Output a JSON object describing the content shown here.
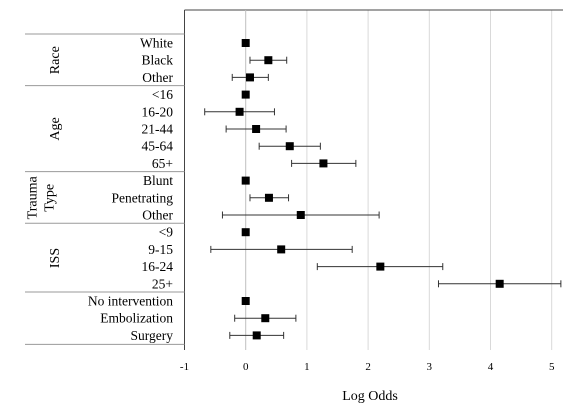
{
  "chart_data": {
    "type": "scatter",
    "xlabel": "Log Odds",
    "xlim": [
      -1,
      5.2
    ],
    "xticks": [
      "-1",
      "0",
      "1",
      "2",
      "3",
      "4",
      "5"
    ],
    "grid": true,
    "groups": [
      {
        "name": "Race",
        "rows": [
          {
            "label": "White",
            "est": 0,
            "lo": null,
            "hi": null
          },
          {
            "label": "Black",
            "est": 0.37,
            "lo": 0.07,
            "hi": 0.67
          },
          {
            "label": "Other",
            "est": 0.07,
            "lo": -0.22,
            "hi": 0.37
          }
        ]
      },
      {
        "name": "Age",
        "rows": [
          {
            "label": "<16",
            "est": 0,
            "lo": null,
            "hi": null
          },
          {
            "label": "16-20",
            "est": -0.1,
            "lo": -0.67,
            "hi": 0.47
          },
          {
            "label": "21-44",
            "est": 0.17,
            "lo": -0.32,
            "hi": 0.66
          },
          {
            "label": "45-64",
            "est": 0.72,
            "lo": 0.22,
            "hi": 1.22
          },
          {
            "label": "65+",
            "est": 1.27,
            "lo": 0.75,
            "hi": 1.8
          }
        ]
      },
      {
        "name": "Trauma Type",
        "rows": [
          {
            "label": "Blunt",
            "est": 0,
            "lo": null,
            "hi": null
          },
          {
            "label": "Penetrating",
            "est": 0.38,
            "lo": 0.07,
            "hi": 0.7
          },
          {
            "label": "Other",
            "est": 0.9,
            "lo": -0.38,
            "hi": 2.18
          }
        ]
      },
      {
        "name": "ISS",
        "rows": [
          {
            "label": "<9",
            "est": 0,
            "lo": null,
            "hi": null
          },
          {
            "label": "9-15",
            "est": 0.58,
            "lo": -0.57,
            "hi": 1.74
          },
          {
            "label": "16-24",
            "est": 2.2,
            "lo": 1.17,
            "hi": 3.22
          },
          {
            "label": "25+",
            "est": 4.15,
            "lo": 3.15,
            "hi": 5.15
          }
        ]
      },
      {
        "name": "",
        "rows": [
          {
            "label": "No intervention",
            "est": 0,
            "lo": null,
            "hi": null
          },
          {
            "label": "Embolization",
            "est": 0.32,
            "lo": -0.18,
            "hi": 0.82
          },
          {
            "label": "Surgery",
            "est": 0.18,
            "lo": -0.26,
            "hi": 0.62
          }
        ]
      }
    ]
  }
}
